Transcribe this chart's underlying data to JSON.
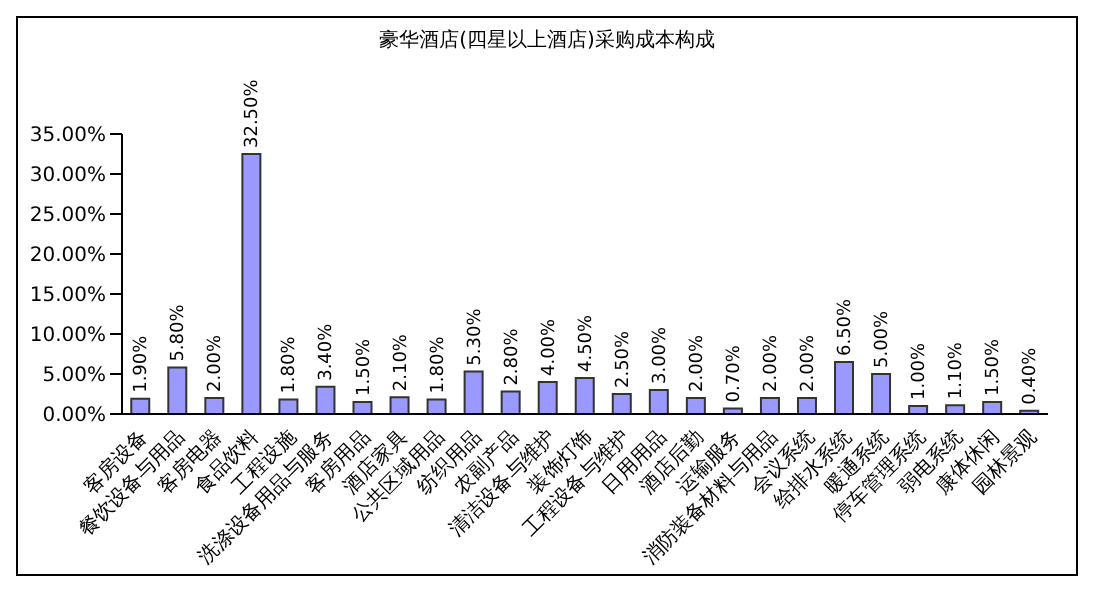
{
  "chart_data": {
    "type": "bar",
    "title": "豪华酒店(四星以上酒店)采购成本构成",
    "categories": [
      "客房设备",
      "餐饮设备与用品",
      "客房电器",
      "食品饮料",
      "工程设施",
      "洗涤设备用品与服务",
      "客房用品",
      "酒店家具",
      "公共区域用品",
      "纺织用品",
      "农副产品",
      "清洁设备与维护",
      "装饰灯饰",
      "工程设备与维护",
      "日用用品",
      "酒店后勤",
      "运输服务",
      "消防装备材料与用品",
      "会议系统",
      "给排水系统",
      "暖通系统",
      "停车管理系统",
      "弱电系统",
      "康体休闲",
      "园林景观"
    ],
    "values": [
      1.9,
      5.8,
      2.0,
      32.5,
      1.8,
      3.4,
      1.5,
      2.1,
      1.8,
      5.3,
      2.8,
      4.0,
      4.5,
      2.5,
      3.0,
      2.0,
      0.7,
      2.0,
      2.0,
      6.5,
      5.0,
      1.0,
      1.1,
      1.5,
      0.4
    ],
    "value_labels": [
      "1.90%",
      "5.80%",
      "2.00%",
      "32.50%",
      "1.80%",
      "3.40%",
      "1.50%",
      "2.10%",
      "1.80%",
      "5.30%",
      "2.80%",
      "4.00%",
      "4.50%",
      "2.50%",
      "3.00%",
      "2.00%",
      "0.70%",
      "2.00%",
      "2.00%",
      "6.50%",
      "5.00%",
      "1.00%",
      "1.10%",
      "1.50%",
      "0.40%"
    ],
    "color": "#9999ff",
    "ylim": [
      0,
      35
    ],
    "yticks": [
      {
        "value": 0,
        "label": "0.00%"
      },
      {
        "value": 5,
        "label": "5.00%"
      },
      {
        "value": 10,
        "label": "10.00%"
      },
      {
        "value": 15,
        "label": "15.00%"
      },
      {
        "value": 20,
        "label": "20.00%"
      },
      {
        "value": 25,
        "label": "25.00%"
      },
      {
        "value": 30,
        "label": "30.00%"
      },
      {
        "value": 35,
        "label": "35.00%"
      }
    ],
    "grid": false,
    "legend": false
  }
}
